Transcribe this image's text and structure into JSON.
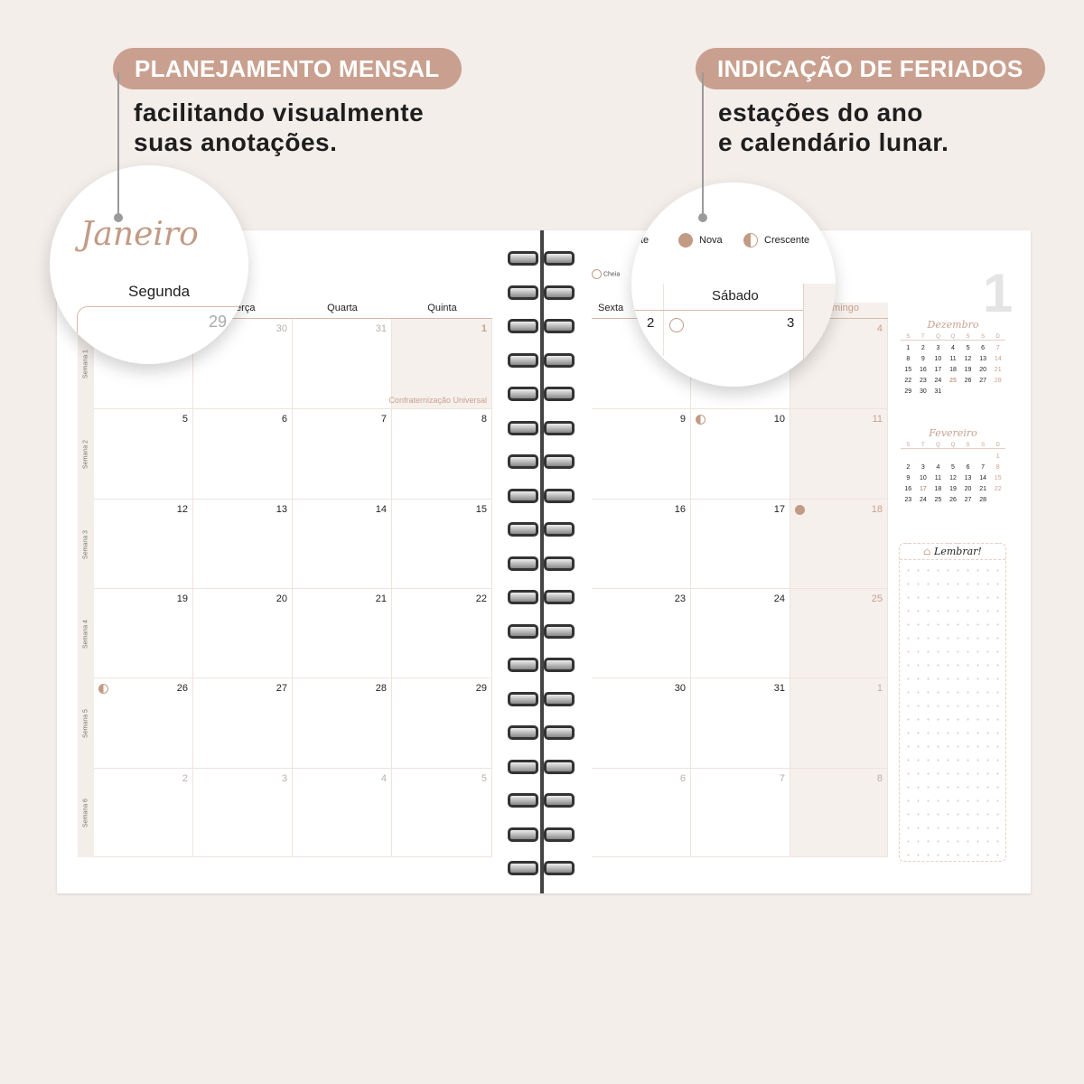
{
  "callouts": [
    {
      "title": "PLANEJAMENTO MENSAL",
      "subtitle": [
        "facilitando visualmente",
        "suas anotações."
      ]
    },
    {
      "title": "INDICAÇÃO DE FERIADOS",
      "subtitle": [
        "estações do ano",
        "e calendário lunar."
      ]
    }
  ],
  "month": {
    "name": "Janeiro",
    "number": "1"
  },
  "weekdays": [
    "Segunda",
    "Terça",
    "Quarta",
    "Quinta",
    "Sexta",
    "Sábado",
    "Domingo"
  ],
  "week_labels": [
    "Semana 1",
    "Semana 2",
    "Semana 3",
    "Semana 4",
    "Semana 5",
    "Semana 6"
  ],
  "weeks": [
    [
      "29",
      "30",
      "31",
      "1",
      "2",
      "3",
      "4"
    ],
    [
      "5",
      "6",
      "7",
      "8",
      "9",
      "10",
      "11"
    ],
    [
      "12",
      "13",
      "14",
      "15",
      "16",
      "17",
      "18"
    ],
    [
      "19",
      "20",
      "21",
      "22",
      "23",
      "24",
      "25"
    ],
    [
      "26",
      "27",
      "28",
      "29",
      "30",
      "31",
      "1"
    ],
    [
      "2",
      "3",
      "4",
      "5",
      "6",
      "7",
      "8"
    ]
  ],
  "holiday": {
    "day": "1",
    "label": "Confraternização Universal"
  },
  "moon_legend": {
    "minguante": "te",
    "nova": "Nova",
    "crescente": "Crescente",
    "cheia": "Cheia"
  },
  "moon_phases": [
    {
      "day": "3",
      "phase": "cheia"
    },
    {
      "day": "10",
      "phase": "crescente"
    },
    {
      "day": "18",
      "phase": "nova"
    },
    {
      "day": "26",
      "phase": "minguante"
    }
  ],
  "mini_calendars": [
    {
      "title": "Dezembro",
      "headers": [
        "S",
        "T",
        "Q",
        "Q",
        "S",
        "S",
        "D"
      ],
      "days": [
        "1",
        "2",
        "3",
        "4",
        "5",
        "6",
        "7",
        "8",
        "9",
        "10",
        "11",
        "12",
        "13",
        "14",
        "15",
        "16",
        "17",
        "18",
        "19",
        "20",
        "21",
        "22",
        "23",
        "24",
        "25",
        "26",
        "27",
        "28",
        "29",
        "30",
        "31"
      ],
      "offset": 0,
      "holiday": "25"
    },
    {
      "title": "Fevereiro",
      "headers": [
        "S",
        "T",
        "Q",
        "Q",
        "S",
        "S",
        "D"
      ],
      "days": [
        "1",
        "2",
        "3",
        "4",
        "5",
        "6",
        "7",
        "8",
        "9",
        "10",
        "11",
        "12",
        "13",
        "14",
        "15",
        "16",
        "17",
        "18",
        "19",
        "20",
        "21",
        "22",
        "23",
        "24",
        "25",
        "26",
        "27",
        "28"
      ],
      "offset": 6,
      "holiday": "17"
    }
  ],
  "reminder": {
    "label": "Lembrar!"
  },
  "colors": {
    "accent": "#c9a08f",
    "background": "#f4eeeb"
  }
}
